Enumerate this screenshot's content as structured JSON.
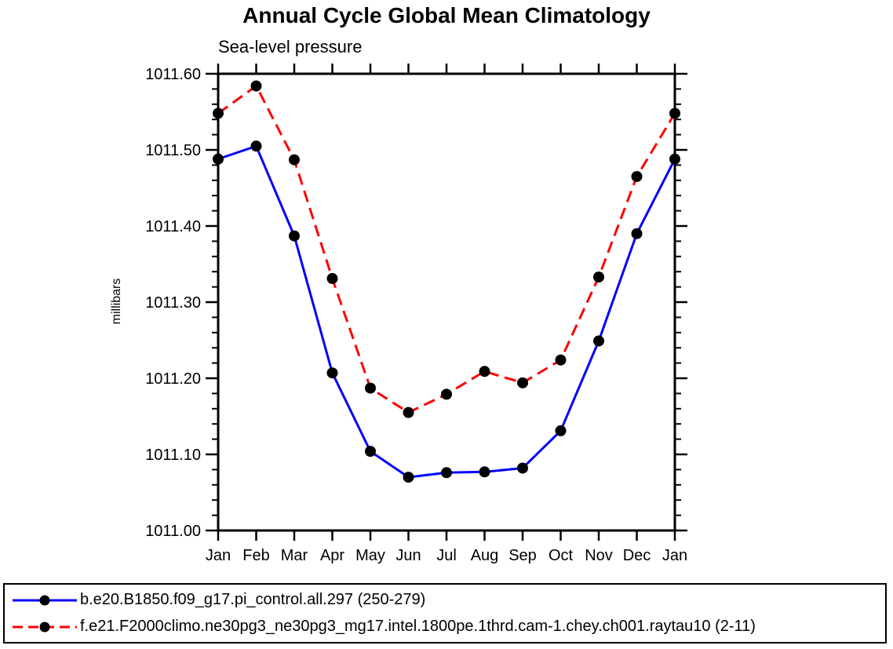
{
  "header": {
    "title": "Annual Cycle Global Mean Climatology",
    "subtitle": "Sea-level pressure"
  },
  "axes": {
    "y_label": "millibars",
    "y_tick_labels": [
      "1011.00",
      "1011.10",
      "1011.20",
      "1011.30",
      "1011.40",
      "1011.50",
      "1011.60"
    ],
    "x_tick_labels": [
      "Jan",
      "Feb",
      "Mar",
      "Apr",
      "May",
      "Jun",
      "Jul",
      "Aug",
      "Sep",
      "Oct",
      "Nov",
      "Dec",
      "Jan"
    ]
  },
  "legend": {
    "items": [
      {
        "label": "b.e20.B1850.f09_g17.pi_control.all.297 (250-279)",
        "color": "#0000ff",
        "style": "solid",
        "marker_color": "#000000"
      },
      {
        "label": "f.e21.F2000climo.ne30pg3_ne30pg3_mg17.intel.1800pe.1thrd.cam-1.chey.ch001.raytau10 (2-11)",
        "color": "#ff0000",
        "style": "dashed",
        "marker_color": "#000000"
      }
    ]
  },
  "colors": {
    "series1": "#0000ff",
    "series2": "#ff0000",
    "marker": "#000000",
    "axis": "#000000",
    "background": "#ffffff"
  },
  "chart_data": {
    "type": "line",
    "title": "Annual Cycle Global Mean Climatology",
    "subtitle": "Sea-level pressure",
    "xlabel": "",
    "ylabel": "millibars",
    "categories": [
      "Jan",
      "Feb",
      "Mar",
      "Apr",
      "May",
      "Jun",
      "Jul",
      "Aug",
      "Sep",
      "Oct",
      "Nov",
      "Dec",
      "Jan"
    ],
    "ylim": [
      1011.0,
      1011.6
    ],
    "ytick_major_step": 0.1,
    "ytick_minor_step": 0.02,
    "grid": false,
    "legend_position": "bottom",
    "series": [
      {
        "name": "b.e20.B1850.f09_g17.pi_control.all.297 (250-279)",
        "color": "#0000ff",
        "line_style": "solid",
        "marker": "filled-circle",
        "marker_color": "#000000",
        "values": [
          1011.488,
          1011.505,
          1011.387,
          1011.207,
          1011.104,
          1011.07,
          1011.076,
          1011.077,
          1011.082,
          1011.131,
          1011.249,
          1011.39,
          1011.488
        ]
      },
      {
        "name": "f.e21.F2000climo.ne30pg3_ne30pg3_mg17.intel.1800pe.1thrd.cam-1.chey.ch001.raytau10 (2-11)",
        "color": "#ff0000",
        "line_style": "dashed",
        "marker": "filled-circle",
        "marker_color": "#000000",
        "values": [
          1011.548,
          1011.584,
          1011.487,
          1011.331,
          1011.187,
          1011.155,
          1011.179,
          1011.209,
          1011.194,
          1011.224,
          1011.333,
          1011.465,
          1011.548
        ]
      }
    ]
  }
}
